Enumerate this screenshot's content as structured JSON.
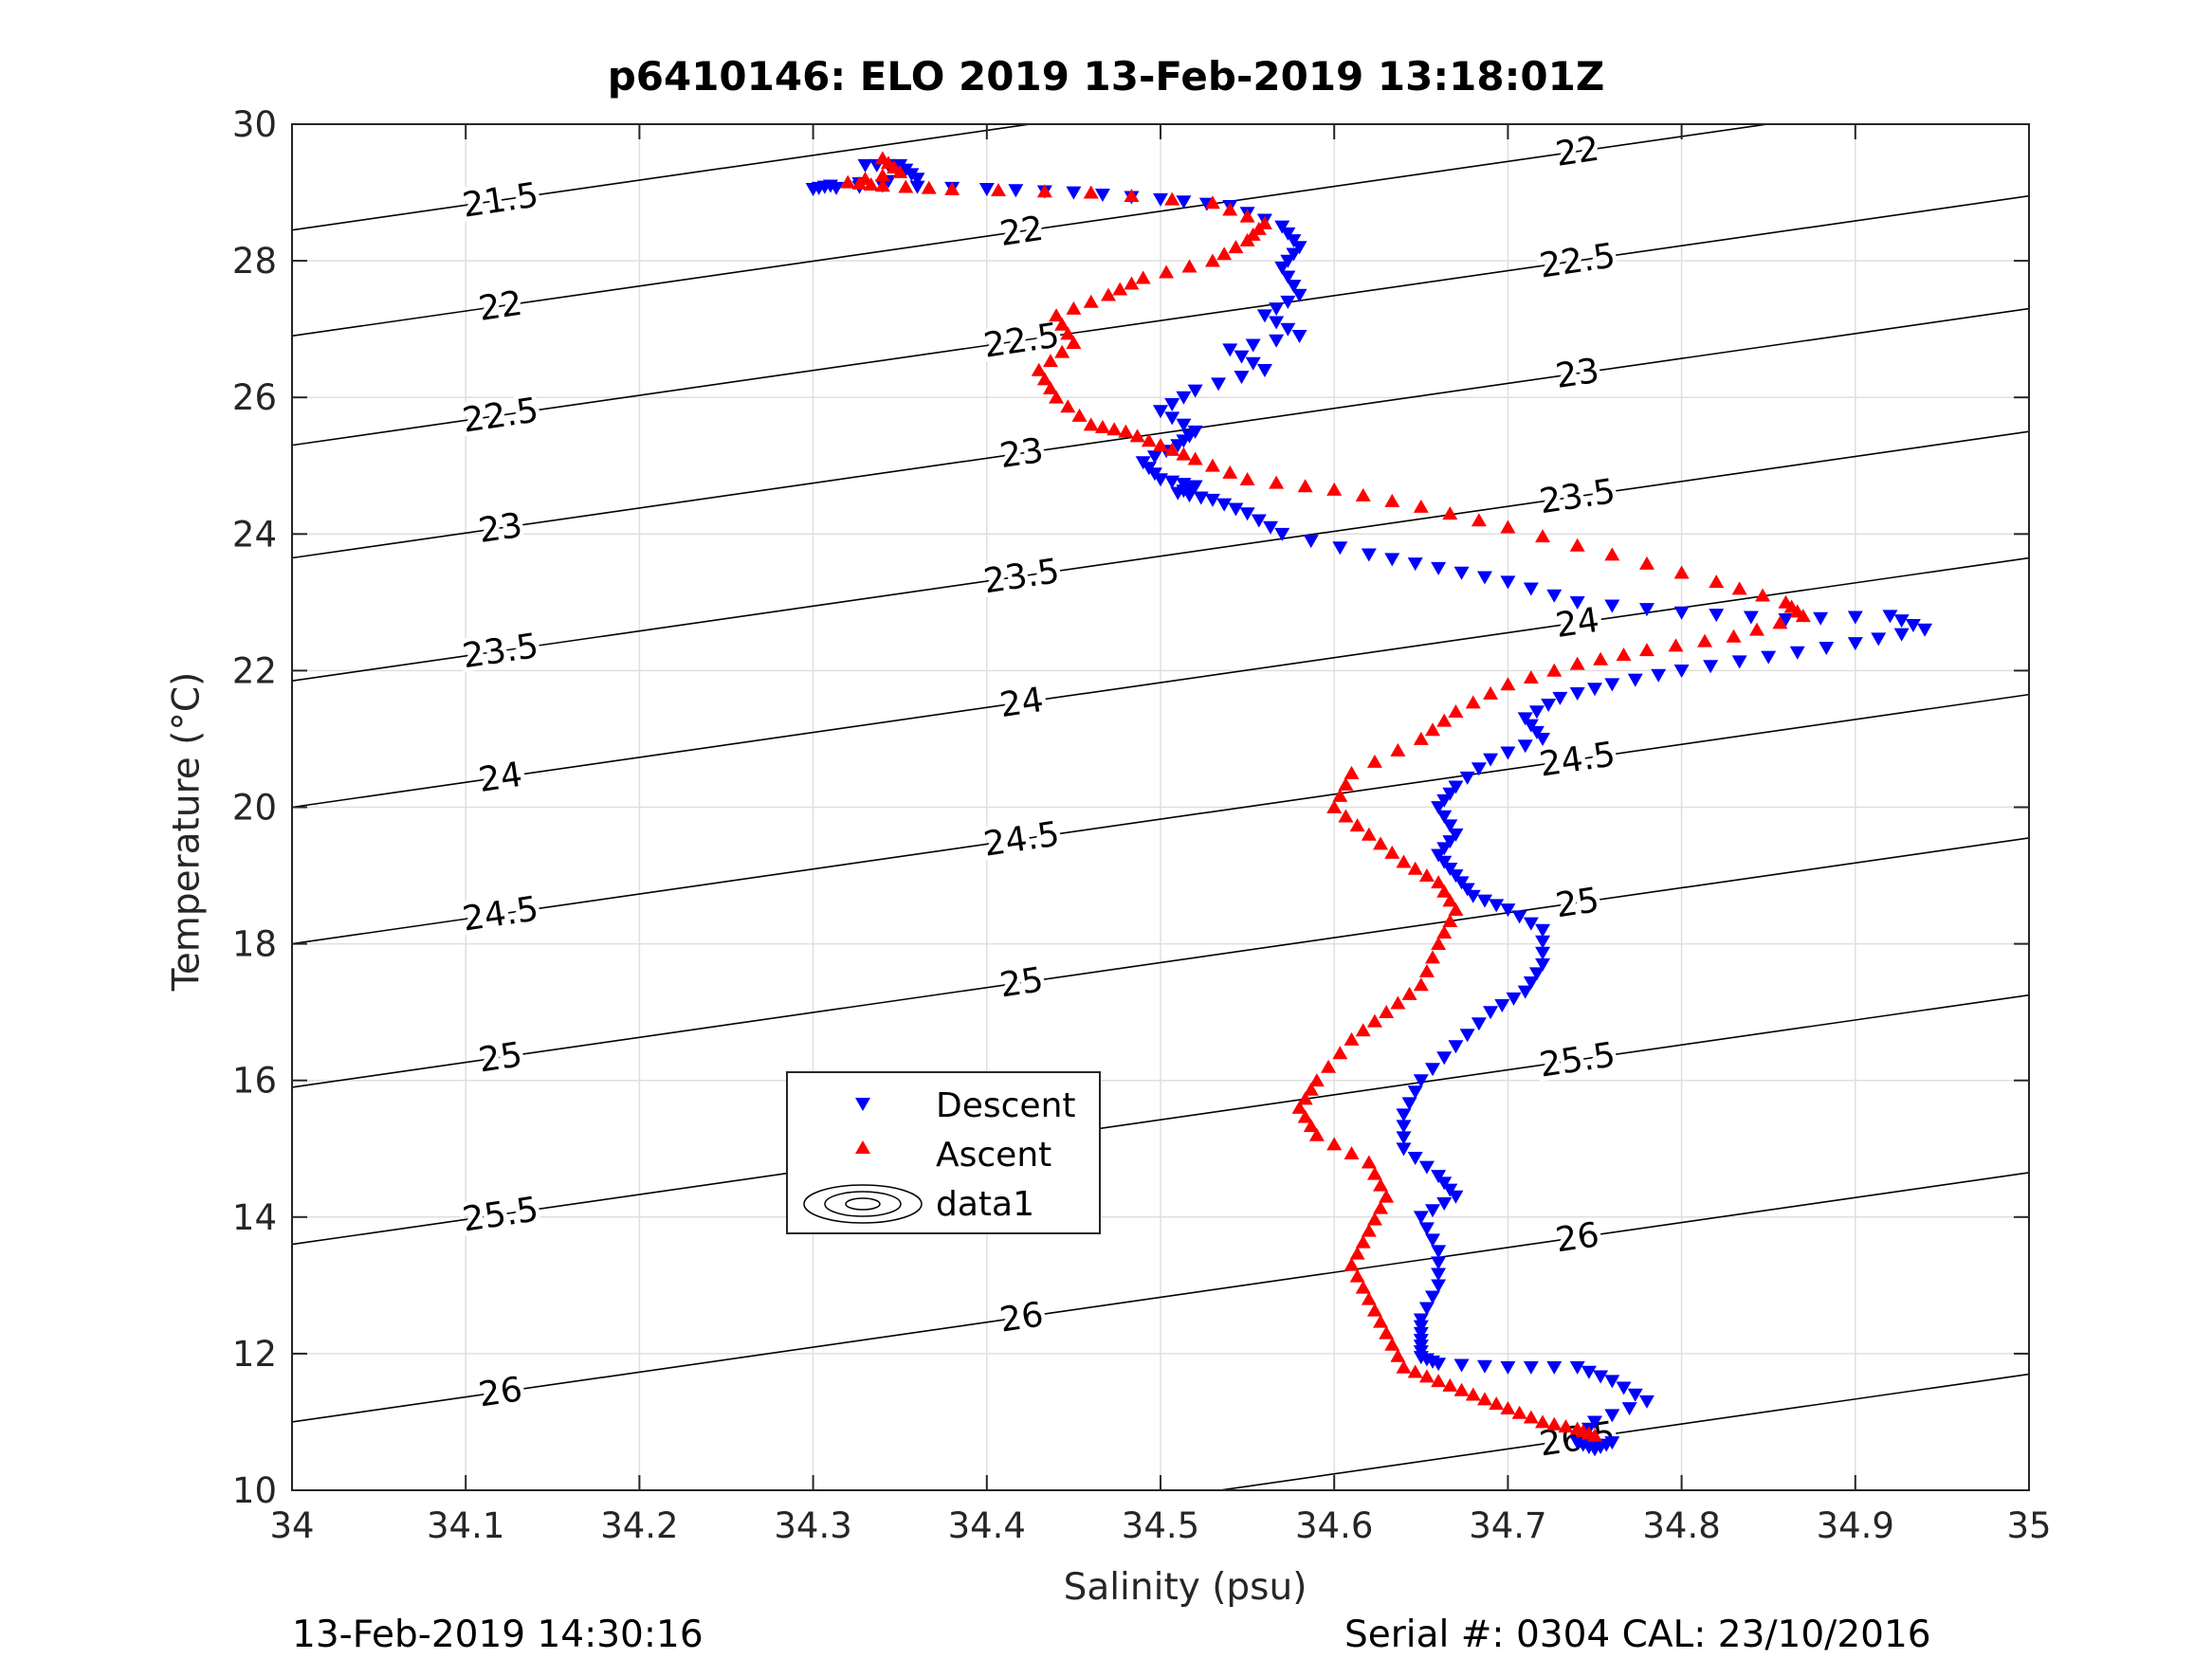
{
  "title": "p6410146: ELO 2019 13-Feb-2019 13:18:01Z",
  "xlabel": "Salinity (psu)",
  "ylabel": "Temperature (°C)",
  "footer_left": "13-Feb-2019 14:30:16",
  "footer_right": "Serial #: 0304  CAL: 23/10/2016",
  "colors": {
    "descent": "#0000ff",
    "ascent": "#ff0000",
    "contour": "#000000",
    "grid": "#dfdfdf"
  },
  "chart_data": {
    "type": "scatter",
    "title": "p6410146: ELO 2019 13-Feb-2019 13:18:01Z",
    "xlabel": "Salinity (psu)",
    "ylabel": "Temperature (°C)",
    "xlim": [
      34,
      35
    ],
    "ylim": [
      10,
      30
    ],
    "xticks": [
      "34",
      "34.1",
      "34.2",
      "34.3",
      "34.4",
      "34.5",
      "34.6",
      "34.7",
      "34.8",
      "34.9",
      "35"
    ],
    "yticks": [
      "10",
      "12",
      "14",
      "16",
      "18",
      "20",
      "22",
      "24",
      "26",
      "28",
      "30"
    ],
    "grid": true,
    "legend": {
      "placement": "inside-lower-left",
      "entries": [
        "Descent",
        "Ascent",
        "data1"
      ]
    },
    "series": [
      {
        "name": "Descent",
        "marker": "triangle-down",
        "color": "#0000ff",
        "x": [
          34.33,
          34.35,
          34.36,
          34.31,
          34.3,
          34.34,
          34.4,
          34.45,
          34.5,
          34.54,
          34.57,
          34.58,
          34.57,
          34.58,
          34.56,
          34.58,
          34.54,
          34.56,
          34.52,
          34.5,
          34.52,
          34.51,
          34.49,
          34.5,
          34.52,
          34.51,
          34.53,
          34.55,
          34.57,
          34.62,
          34.66,
          34.7,
          34.74,
          34.8,
          34.86,
          34.92,
          34.94,
          34.9,
          34.85,
          34.8,
          34.76,
          34.73,
          34.71,
          34.72,
          34.69,
          34.67,
          34.66,
          34.67,
          34.66,
          34.67,
          34.68,
          34.7,
          34.72,
          34.72,
          34.71,
          34.69,
          34.67,
          34.65,
          34.64,
          34.64,
          34.66,
          34.67,
          34.65,
          34.66,
          34.66,
          34.65,
          34.65,
          34.65,
          34.66,
          34.7,
          34.74,
          34.76,
          34.78,
          34.75,
          34.74,
          34.75,
          34.76
        ],
        "y": [
          29.4,
          29.4,
          29.2,
          29.1,
          29.05,
          29.1,
          29.05,
          29.0,
          28.9,
          28.8,
          28.5,
          28.2,
          27.9,
          27.5,
          27.2,
          26.9,
          26.7,
          26.4,
          26.1,
          25.8,
          25.5,
          25.3,
          25.05,
          24.8,
          24.7,
          24.6,
          24.5,
          24.3,
          24.0,
          23.7,
          23.5,
          23.3,
          23.0,
          22.85,
          22.75,
          22.8,
          22.6,
          22.4,
          22.2,
          22.0,
          21.8,
          21.6,
          21.3,
          21.0,
          20.7,
          20.3,
          20.0,
          19.6,
          19.3,
          19.0,
          18.7,
          18.5,
          18.2,
          17.7,
          17.3,
          17.0,
          16.5,
          16.0,
          15.5,
          15.0,
          14.6,
          14.3,
          14.0,
          13.5,
          13.0,
          12.5,
          12.2,
          11.95,
          11.85,
          11.8,
          11.8,
          11.6,
          11.3,
          11.0,
          10.7,
          10.6,
          10.7
        ]
      },
      {
        "name": "Ascent",
        "marker": "triangle-up",
        "color": "#ff0000",
        "x": [
          34.34,
          34.35,
          34.32,
          34.34,
          34.38,
          34.46,
          34.53,
          34.56,
          34.55,
          34.53,
          34.49,
          34.47,
          34.44,
          34.45,
          34.43,
          34.44,
          34.46,
          34.48,
          34.5,
          34.52,
          34.55,
          34.6,
          34.65,
          34.7,
          34.76,
          34.82,
          34.86,
          34.87,
          34.83,
          34.78,
          34.74,
          34.7,
          34.67,
          34.65,
          34.61,
          34.6,
          34.62,
          34.64,
          34.66,
          34.67,
          34.66,
          34.65,
          34.63,
          34.61,
          34.59,
          34.58,
          34.59,
          34.62,
          34.63,
          34.62,
          34.61,
          34.62,
          34.63,
          34.64,
          34.66,
          34.68,
          34.7,
          34.72,
          34.74,
          34.75
        ],
        "y": [
          29.5,
          29.3,
          29.15,
          29.1,
          29.05,
          29.0,
          28.85,
          28.55,
          28.3,
          28.0,
          27.75,
          27.5,
          27.2,
          26.8,
          26.4,
          26.0,
          25.6,
          25.5,
          25.3,
          25.1,
          24.8,
          24.65,
          24.4,
          24.1,
          23.7,
          23.3,
          23.0,
          22.8,
          22.5,
          22.3,
          22.1,
          21.8,
          21.4,
          21.0,
          20.5,
          20.0,
          19.6,
          19.2,
          18.9,
          18.5,
          18.0,
          17.4,
          17.0,
          16.6,
          16.0,
          15.6,
          15.2,
          14.8,
          14.3,
          13.8,
          13.3,
          12.8,
          12.3,
          11.8,
          11.6,
          11.4,
          11.2,
          11.0,
          10.9,
          10.8
        ]
      }
    ],
    "contours": {
      "name": "data1",
      "levels": [
        "21.5",
        "22",
        "22.5",
        "23",
        "23.5",
        "24",
        "24.5",
        "25",
        "25.5",
        "26",
        "26.5"
      ]
    }
  }
}
